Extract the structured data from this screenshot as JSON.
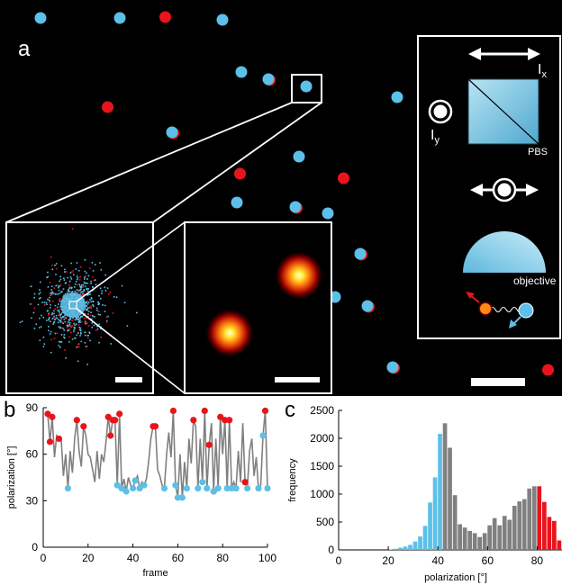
{
  "panel_a": {
    "label": "a",
    "inset": {
      "ix": "I",
      "ix_sub": "x",
      "iy": "I",
      "iy_sub": "y",
      "pbs": "PBS",
      "objective": "objective"
    },
    "colors": {
      "red": "#e8141c",
      "blue": "#5cc0e8",
      "gray": "#808080",
      "dark": "#000000"
    }
  },
  "panel_b": {
    "label": "b"
  },
  "panel_c": {
    "label": "c"
  },
  "chart_data": [
    {
      "type": "line",
      "xlabel": "frame",
      "ylabel": "polarization [°]",
      "xlim": [
        0,
        100
      ],
      "ylim": [
        0,
        90
      ],
      "xticks": [
        0,
        20,
        40,
        60,
        80,
        100
      ],
      "yticks": [
        0,
        30,
        60,
        90
      ],
      "x": [
        1,
        2,
        3,
        4,
        5,
        6,
        7,
        8,
        9,
        10,
        11,
        12,
        13,
        14,
        15,
        16,
        17,
        18,
        19,
        20,
        21,
        22,
        23,
        24,
        25,
        26,
        27,
        28,
        29,
        30,
        31,
        32,
        33,
        34,
        35,
        36,
        37,
        38,
        39,
        40,
        41,
        42,
        43,
        44,
        45,
        46,
        47,
        48,
        49,
        50,
        51,
        52,
        53,
        54,
        55,
        56,
        57,
        58,
        59,
        60,
        61,
        62,
        63,
        64,
        65,
        66,
        67,
        68,
        69,
        70,
        71,
        72,
        73,
        74,
        75,
        76,
        77,
        78,
        79,
        80,
        81,
        82,
        83,
        84,
        85,
        86,
        87,
        88,
        89,
        90,
        91,
        92,
        93,
        94,
        95,
        96,
        97,
        98,
        99,
        100
      ],
      "y": [
        86,
        86,
        68,
        84,
        58,
        72,
        70,
        70,
        46,
        60,
        38,
        62,
        48,
        70,
        82,
        62,
        52,
        78,
        72,
        60,
        58,
        50,
        42,
        62,
        44,
        60,
        55,
        68,
        84,
        72,
        82,
        82,
        40,
        86,
        38,
        44,
        36,
        45,
        40,
        38,
        43,
        46,
        38,
        42,
        40,
        44,
        55,
        70,
        78,
        78,
        50,
        46,
        40,
        38,
        60,
        74,
        58,
        88,
        40,
        32,
        60,
        32,
        55,
        38,
        70,
        54,
        82,
        78,
        38,
        70,
        42,
        88,
        38,
        66,
        80,
        36,
        70,
        38,
        84,
        60,
        82,
        38,
        82,
        38,
        42,
        38,
        62,
        42,
        80,
        42,
        38,
        62,
        70,
        46,
        58,
        38,
        40,
        72,
        88,
        38
      ],
      "highlighted_high": {
        "color": "red",
        "x": [
          2,
          3,
          4,
          7,
          15,
          18,
          29,
          30,
          31,
          32,
          34,
          49,
          50,
          58,
          67,
          72,
          74,
          76,
          79,
          81,
          83,
          90,
          99
        ]
      },
      "highlighted_low": {
        "color": "blue",
        "x": [
          11,
          33,
          35,
          37,
          40,
          41,
          43,
          45,
          54,
          59,
          60,
          62,
          64,
          69,
          71,
          73,
          76,
          78,
          82,
          84,
          86,
          91,
          96,
          98,
          100
        ]
      }
    },
    {
      "type": "bar",
      "xlabel": "polarization [°]",
      "ylabel": "frequency",
      "xlim": [
        0,
        90
      ],
      "ylim": [
        0,
        2500
      ],
      "xticks": [
        0,
        20,
        40,
        60,
        80
      ],
      "yticks": [
        0,
        500,
        1000,
        1500,
        2000,
        2500
      ],
      "bin_width": 2,
      "categories": [
        20,
        22,
        24,
        26,
        28,
        30,
        32,
        34,
        36,
        38,
        40,
        42,
        44,
        46,
        48,
        50,
        52,
        54,
        56,
        58,
        60,
        62,
        64,
        66,
        68,
        70,
        72,
        74,
        76,
        78,
        80,
        82,
        84,
        86,
        88
      ],
      "values": [
        10,
        20,
        40,
        60,
        90,
        150,
        240,
        430,
        850,
        1300,
        2080,
        2270,
        1830,
        980,
        460,
        400,
        340,
        300,
        230,
        300,
        440,
        570,
        440,
        610,
        540,
        790,
        870,
        910,
        1100,
        1140,
        1140,
        860,
        590,
        520,
        170
      ],
      "bar_colors": [
        "blue",
        "blue",
        "blue",
        "blue",
        "blue",
        "blue",
        "blue",
        "blue",
        "blue",
        "blue",
        "blue",
        "gray",
        "gray",
        "gray",
        "gray",
        "gray",
        "gray",
        "gray",
        "gray",
        "gray",
        "gray",
        "gray",
        "gray",
        "gray",
        "gray",
        "gray",
        "gray",
        "gray",
        "gray",
        "gray",
        "red",
        "red",
        "red",
        "red",
        "red"
      ]
    }
  ]
}
